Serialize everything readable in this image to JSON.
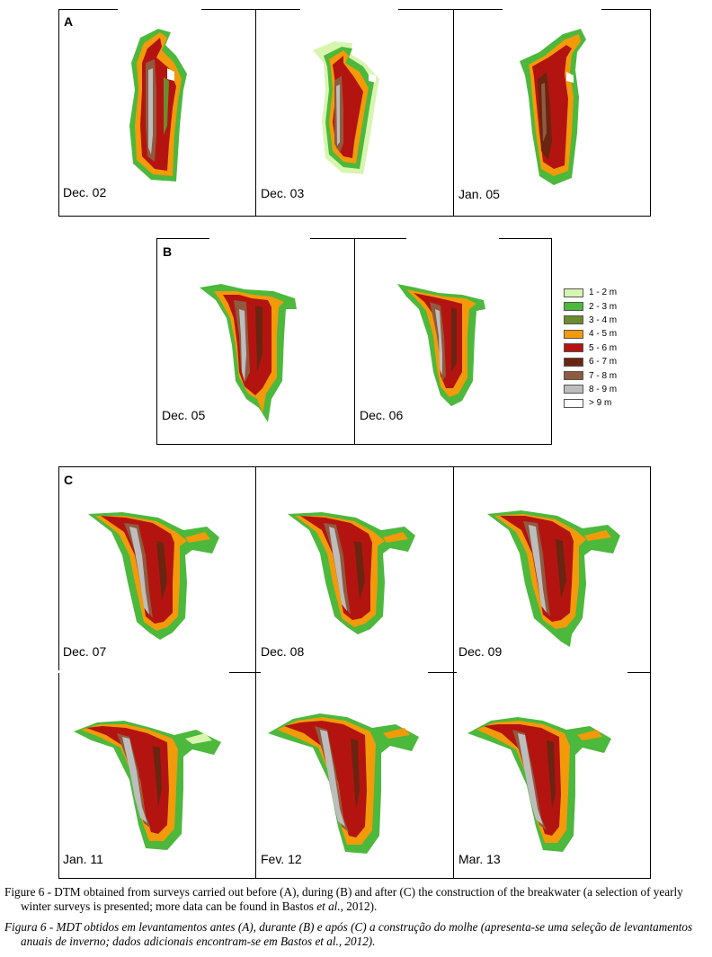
{
  "panels": {
    "A": {
      "label": "A",
      "dates": [
        "Dec. 02",
        "Dec. 03",
        "Jan. 05"
      ]
    },
    "B": {
      "label": "B",
      "dates": [
        "Dec. 05",
        "Dec. 06"
      ]
    },
    "C": {
      "label": "C",
      "dates": [
        "Dec. 07",
        "Dec. 08",
        "Dec. 09",
        "Jan. 11",
        "Fev. 12",
        "Mar. 13"
      ]
    }
  },
  "legend": [
    {
      "label": "1 - 2 m",
      "color": "#d8f5b0"
    },
    {
      "label": "2 - 3 m",
      "color": "#4cb83c"
    },
    {
      "label": "3 - 4 m",
      "color": "#6a8c2e"
    },
    {
      "label": "4 - 5 m",
      "color": "#f29a0a"
    },
    {
      "label": "5 - 6 m",
      "color": "#b4140f"
    },
    {
      "label": "6 - 7 m",
      "color": "#6b2410"
    },
    {
      "label": "7 - 8 m",
      "color": "#8f5a40"
    },
    {
      "label": "8 - 9 m",
      "color": "#bdbdbd"
    },
    {
      "label": "> 9 m",
      "color": "#ffffff"
    }
  ],
  "caption": {
    "en_prefix": "Figure 6 - DTM obtained from surveys carried out before (A), during (B) and after (C) the construction of the breakwater (a selection of yearly winter surveys is presented; more data can be found in Bastos ",
    "en_etal": "et al.",
    "en_suffix": ", 2012).",
    "pt": "Figura 6 - MDT obtidos em levantamentos antes (A), durante (B) e após (C) a construção do molhe (apresenta-se uma seleção de levantamentos anuais de inverno; dados adicionais encontram-se em Bastos et al., 2012)."
  }
}
